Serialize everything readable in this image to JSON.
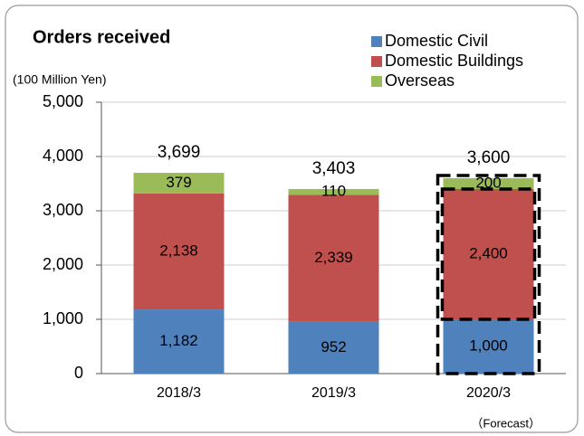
{
  "chart_data": {
    "type": "stacked_bar",
    "title": "Orders received",
    "y_axis_label": "(100 Million Yen)",
    "categories": [
      "2018/3",
      "2019/3",
      "2020/3"
    ],
    "series": [
      {
        "name": "Domestic Civil",
        "color": "#4f81bd",
        "values": [
          1182,
          952,
          1000
        ],
        "value_labels": [
          "1,182",
          "952",
          "1,000"
        ]
      },
      {
        "name": "Domestic Buildings",
        "color": "#c0504d",
        "values": [
          2138,
          2339,
          2400
        ],
        "value_labels": [
          "2,138",
          "2,339",
          "2,400"
        ]
      },
      {
        "name": "Overseas",
        "color": "#9bbb59",
        "values": [
          379,
          110,
          200
        ],
        "value_labels": [
          "379",
          "110",
          "200"
        ]
      }
    ],
    "total_labels": [
      "3,699",
      "3,403",
      "3,600"
    ],
    "annotation": "（Forecast）",
    "ylim": [
      0,
      5000
    ],
    "yticks": [
      0,
      {
        "value": 1000,
        "label": "1,000"
      },
      {
        "value": 2000,
        "label": "2,000"
      },
      {
        "value": 3000,
        "label": "3,000"
      },
      {
        "value": 4000,
        "label": "4,000"
      },
      {
        "value": 5000,
        "label": "5,000"
      }
    ],
    "grid": true,
    "legend": "top-right"
  }
}
